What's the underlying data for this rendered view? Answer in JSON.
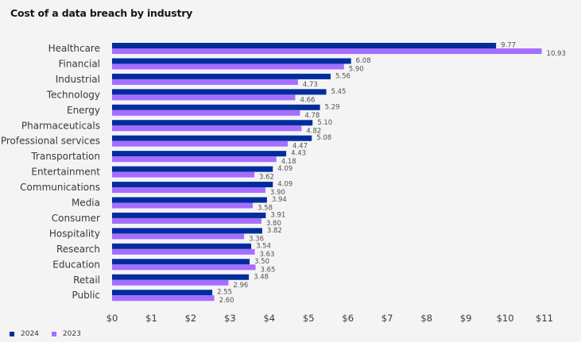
{
  "title": "Cost of a data breach by industry",
  "colors": {
    "series_2024": "#002d9c",
    "series_2023": "#a56eff"
  },
  "chart_data": {
    "type": "bar",
    "orientation": "horizontal",
    "title": "Cost of a data breach by industry",
    "xlabel": "",
    "ylabel": "",
    "xlim": [
      0,
      11
    ],
    "x_ticks": [
      "$0",
      "$1",
      "$2",
      "$3",
      "$4",
      "$5",
      "$6",
      "$7",
      "$8",
      "$9",
      "$10",
      "$11"
    ],
    "grid": false,
    "legend_position": "bottom-left",
    "categories": [
      "Healthcare",
      "Financial",
      "Industrial",
      "Technology",
      "Energy",
      "Pharmaceuticals",
      "Professional services",
      "Transportation",
      "Entertainment",
      "Communications",
      "Media",
      "Consumer",
      "Hospitality",
      "Research",
      "Education",
      "Retail",
      "Public"
    ],
    "series": [
      {
        "name": "2024",
        "values": [
          9.77,
          6.08,
          5.56,
          5.45,
          5.29,
          5.1,
          5.08,
          4.43,
          4.09,
          4.09,
          3.94,
          3.91,
          3.82,
          3.54,
          3.5,
          3.48,
          2.55
        ],
        "labels": [
          "9.77",
          "6.08",
          "5.56",
          "5.45",
          "5.29",
          "5.10",
          "5.08",
          "4.43",
          "4.09",
          "4.09",
          "3.94",
          "3.91",
          "3.82",
          "3.54",
          "3.50",
          "3.48",
          "2.55"
        ]
      },
      {
        "name": "2023",
        "values": [
          10.93,
          5.9,
          4.73,
          4.66,
          4.78,
          4.82,
          4.47,
          4.18,
          3.62,
          3.9,
          3.58,
          3.8,
          3.36,
          3.63,
          3.65,
          2.96,
          2.6
        ],
        "labels": [
          "10.93",
          "5.90",
          "4.73",
          "4.66",
          "4.78",
          "4.82",
          "4.47",
          "4.18",
          "3.62",
          "3.90",
          "3.58",
          "3.80",
          "3.36",
          "3.63",
          "3.65",
          "2.96",
          "2.60"
        ]
      }
    ]
  },
  "legend": [
    {
      "label": "2024"
    },
    {
      "label": "2023"
    }
  ]
}
